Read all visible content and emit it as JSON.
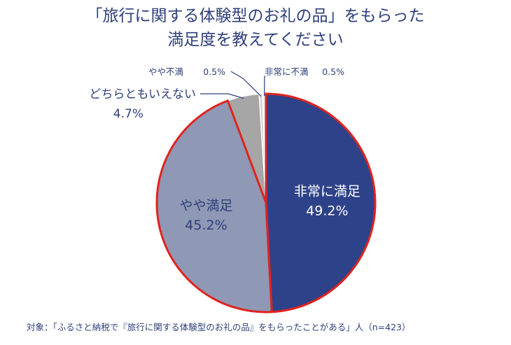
{
  "chart_data": {
    "type": "pie",
    "title_line1": "「旅行に関する体験型のお礼の品」をもらった",
    "title_line2": "満足度を教えてください",
    "slices": [
      {
        "label": "非常に満足",
        "value": 49.2,
        "value_text": "49.2%",
        "color": "#2e428a",
        "text_color": "#ffffff"
      },
      {
        "label": "やや満足",
        "value": 45.2,
        "value_text": "45.2%",
        "color": "#8f98b4",
        "text_color": "#2e3f7c"
      },
      {
        "label": "どちらともいえない",
        "value": 4.7,
        "value_text": "4.7%",
        "color": "#a6a6a6",
        "text_color": "#2e3f7c"
      },
      {
        "label": "やや不満",
        "value": 0.5,
        "value_text": "0.5%",
        "color": "#d4d4d4",
        "text_color": "#2e3f7c"
      },
      {
        "label": "非常に不満",
        "value": 0.5,
        "value_text": "0.5%",
        "color": "#ececec",
        "text_color": "#2e3f7c"
      }
    ],
    "highlight_color": "#e0231e",
    "highlighted_slices": [
      "非常に満足",
      "やや満足"
    ],
    "footnote": "対象：「ふるさと納税で『旅行に関する体験型のお礼の品』をもらったことがある」人（n=423）"
  }
}
